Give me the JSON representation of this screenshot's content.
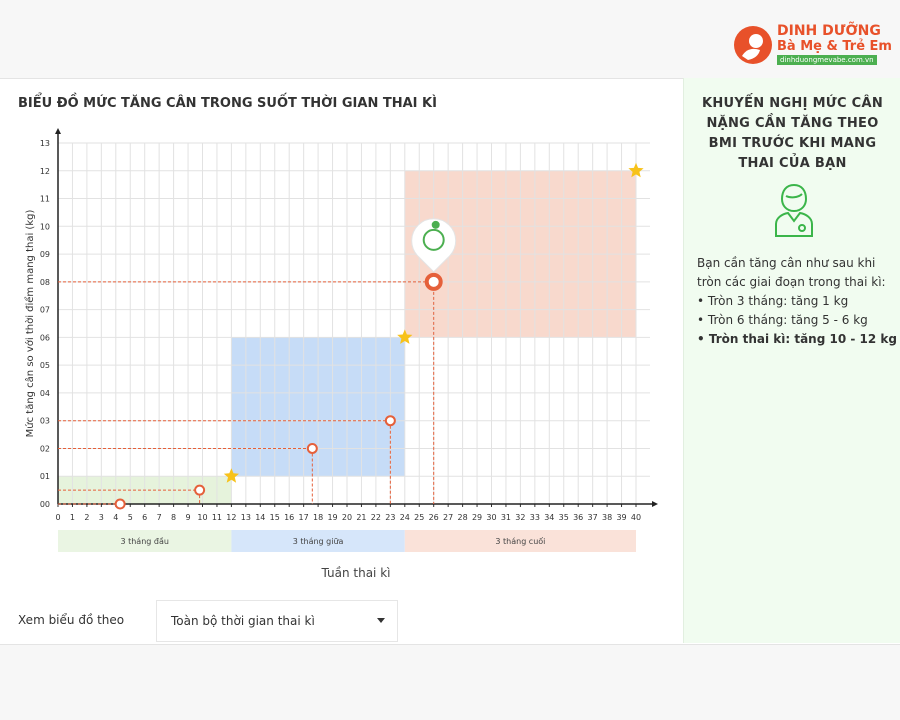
{
  "header": {
    "logo_title": "DINH DƯỠNG",
    "logo_subtitle": "Bà Mẹ & Trẻ Em",
    "logo_url": "dinhduongmevabe.com.vn"
  },
  "chart_data": {
    "type": "scatter",
    "title": "BIỂU ĐỒ MỨC TĂNG CÂN TRONG SUỐT THỜI GIAN THAI KÌ",
    "x_label": "Tuần thai kì",
    "y_label": "Mức tăng cân so với thời điểm mang thai (kg)",
    "xlim": [
      0,
      40
    ],
    "xticks": [
      0,
      1,
      2,
      3,
      4,
      5,
      6,
      7,
      8,
      9,
      10,
      11,
      12,
      13,
      14,
      15,
      16,
      17,
      18,
      19,
      20,
      21,
      22,
      23,
      24,
      25,
      26,
      27,
      28,
      29,
      30,
      31,
      32,
      33,
      34,
      35,
      36,
      37,
      38,
      39,
      40
    ],
    "ylim": [
      0,
      13
    ],
    "yticks": [
      {
        "value": 0,
        "label": "00"
      },
      {
        "value": 1,
        "label": "01"
      },
      {
        "value": 2,
        "label": "02"
      },
      {
        "value": 3,
        "label": "03"
      },
      {
        "value": 4,
        "label": "04"
      },
      {
        "value": 5,
        "label": "05"
      },
      {
        "value": 6,
        "label": "06"
      },
      {
        "value": 7,
        "label": "07"
      },
      {
        "value": 8,
        "label": "08"
      },
      {
        "value": 9,
        "label": "09"
      },
      10,
      11,
      12,
      13
    ],
    "grid": true,
    "regions": [
      {
        "label": "3 tháng đầu",
        "x_range": [
          0,
          12
        ],
        "y_range": [
          0,
          1
        ],
        "color": "#e6f3dc",
        "band_color": "#eaf5e3"
      },
      {
        "label": "3 tháng giữa",
        "x_range": [
          12,
          24
        ],
        "y_range": [
          1,
          6
        ],
        "color": "#c6dcf7",
        "band_color": "#d6e6fa"
      },
      {
        "label": "3 tháng cuối",
        "x_range": [
          24,
          40
        ],
        "y_range": [
          6,
          12
        ],
        "color": "#f8d9cd",
        "band_color": "#fae2d9"
      }
    ],
    "series": [
      {
        "kind": "points",
        "color": "#e5603a",
        "x": [
          4.3,
          9.8,
          17.6,
          23
        ],
        "values": [
          0,
          0.5,
          2,
          3
        ]
      },
      {
        "kind": "stars",
        "color": "#f7c21a",
        "x": [
          12,
          24,
          40
        ],
        "values": [
          1,
          6,
          12
        ]
      },
      {
        "kind": "current",
        "color": "#e5603a",
        "x": [
          26
        ],
        "values": [
          8
        ]
      }
    ]
  },
  "sidebar": {
    "title": "KHUYẾN NGHỊ MỨC CÂN NẶNG CẦN TĂNG THEO BMI TRƯỚC KHI MANG THAI CỦA BẠN",
    "intro": "Bạn cần tăng cân như sau khi tròn các giai đoạn trong thai kì:",
    "items": [
      "• Tròn 3 tháng: tăng 1 kg",
      "• Tròn 6 tháng: tăng 5 - 6 kg",
      "• Tròn thai kì: tăng 10 - 12 kg"
    ]
  },
  "controls": {
    "label": "Xem biểu đồ theo",
    "select": "Toàn bộ thời gian thai kì"
  }
}
